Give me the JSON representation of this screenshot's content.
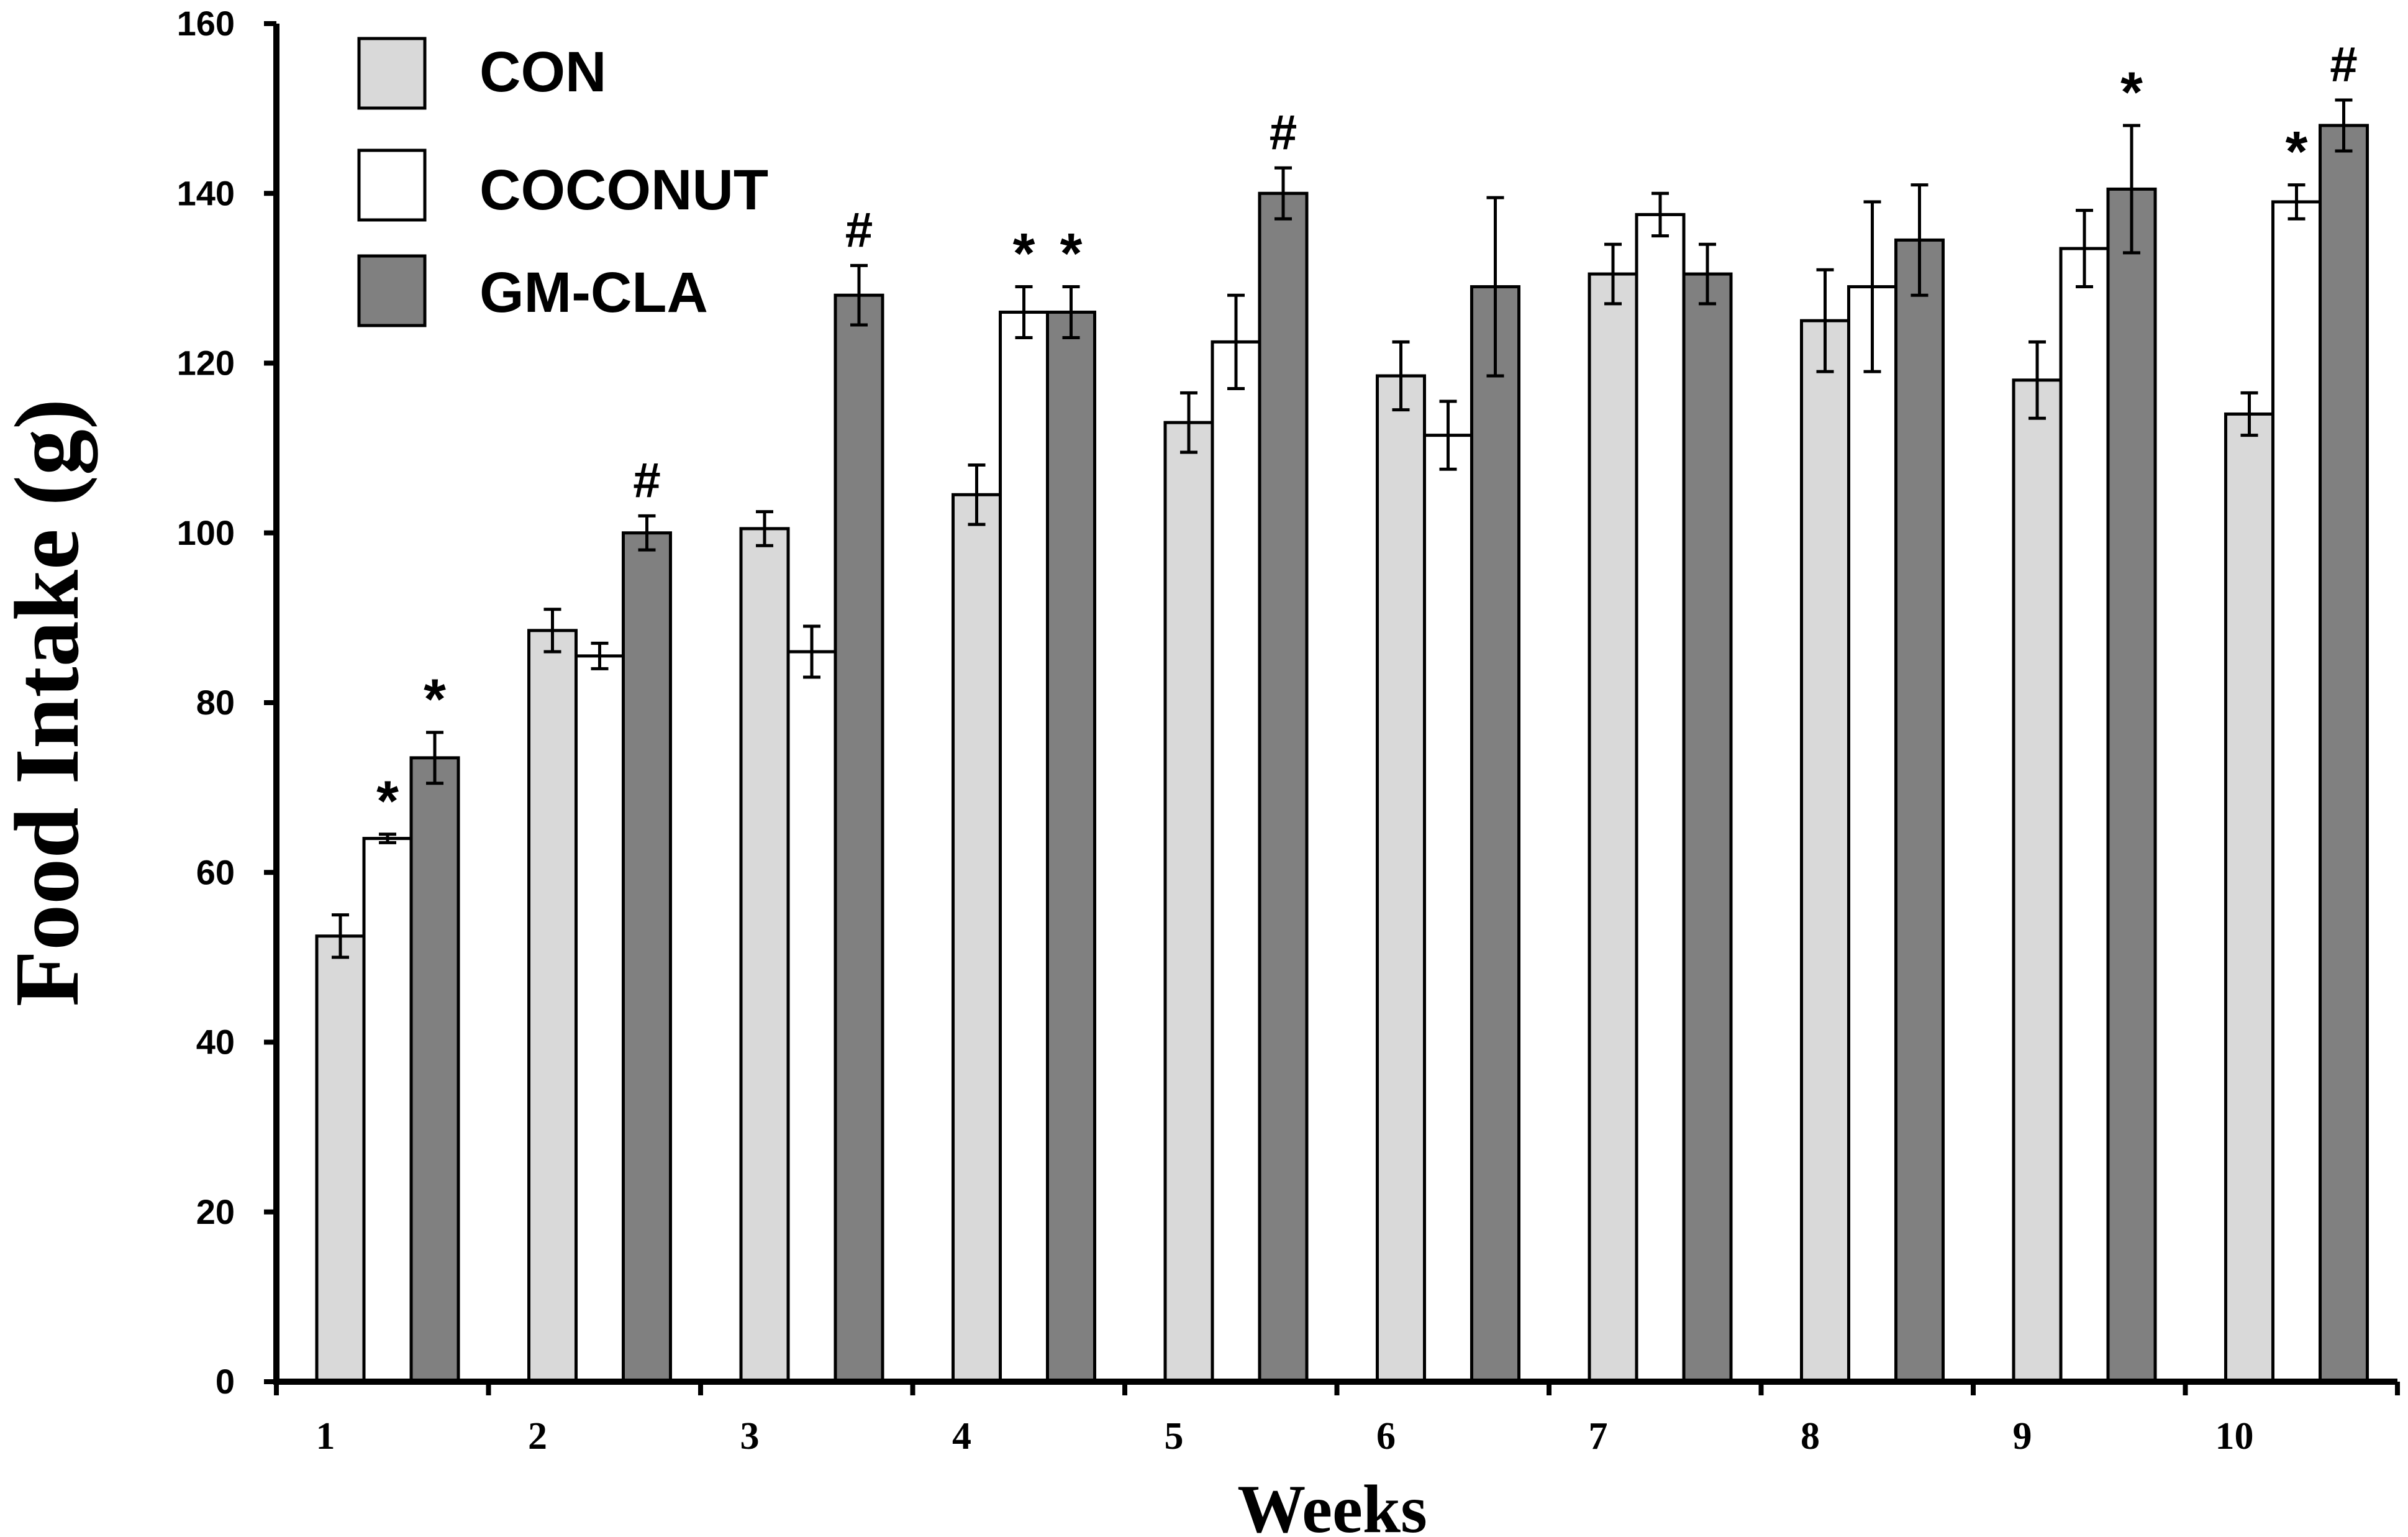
{
  "chart_data": {
    "type": "bar",
    "title": "",
    "xlabel": "Weeks",
    "ylabel": "Food Intake (g)",
    "ylim": [
      0,
      160
    ],
    "yticks": [
      0,
      20,
      40,
      60,
      80,
      100,
      120,
      140,
      160
    ],
    "categories": [
      "1",
      "2",
      "3",
      "4",
      "5",
      "6",
      "7",
      "8",
      "9",
      "10"
    ],
    "legend_position": "top-left",
    "grid": false,
    "series": [
      {
        "name": "CON",
        "color": "#d9d9d9",
        "values": [
          52.5,
          88.5,
          100.5,
          104.5,
          113,
          118.5,
          130.5,
          125,
          118,
          114
        ],
        "errors": [
          2.5,
          2.5,
          2,
          3.5,
          3.5,
          4,
          3.5,
          6,
          4.5,
          2.5
        ]
      },
      {
        "name": "COCONUT",
        "color": "#ffffff",
        "values": [
          64,
          85.5,
          86,
          126,
          122.5,
          111.5,
          137.5,
          129,
          133.5,
          139
        ],
        "errors": [
          0.5,
          1.5,
          3,
          3,
          5.5,
          4,
          2.5,
          10,
          4.5,
          2
        ]
      },
      {
        "name": "GM-CLA",
        "color": "#808080",
        "values": [
          73.5,
          100,
          128,
          126,
          140,
          129,
          130.5,
          134.5,
          140.5,
          148
        ],
        "errors": [
          3,
          2,
          3.5,
          3,
          3,
          10.5,
          3.5,
          6.5,
          7.5,
          3
        ]
      }
    ],
    "annotations": [
      {
        "category": "1",
        "series": "COCONUT",
        "text": "*"
      },
      {
        "category": "1",
        "series": "GM-CLA",
        "text": "*"
      },
      {
        "category": "2",
        "series": "GM-CLA",
        "text": "#"
      },
      {
        "category": "3",
        "series": "GM-CLA",
        "text": "#"
      },
      {
        "category": "4",
        "series": "COCONUT",
        "text": "*"
      },
      {
        "category": "4",
        "series": "GM-CLA",
        "text": "*"
      },
      {
        "category": "5",
        "series": "GM-CLA",
        "text": "#"
      },
      {
        "category": "9",
        "series": "GM-CLA",
        "text": "*"
      },
      {
        "category": "10",
        "series": "COCONUT",
        "text": "*"
      },
      {
        "category": "10",
        "series": "GM-CLA",
        "text": "#"
      }
    ]
  }
}
